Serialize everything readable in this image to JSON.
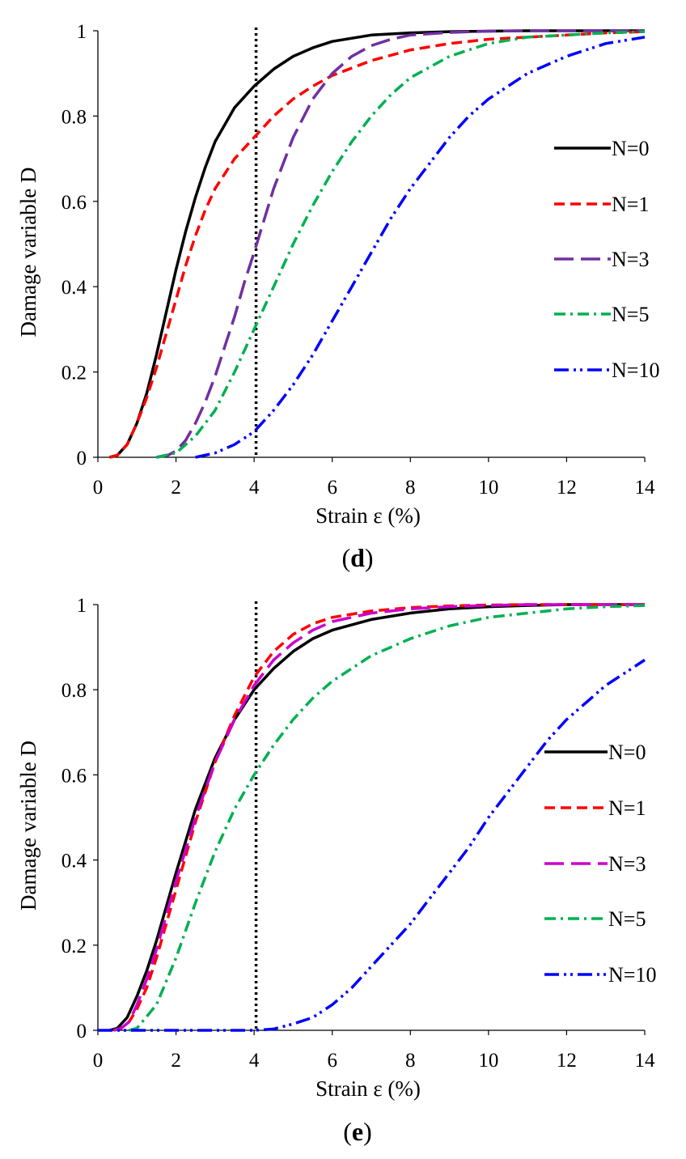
{
  "chart_data": [
    {
      "type": "line",
      "panel_label": "d",
      "xlabel": "Strain ε (%)",
      "ylabel": "Damage variable D",
      "xlim": [
        0,
        14
      ],
      "ylim": [
        0,
        1
      ],
      "x_ticks": [
        "0",
        "2",
        "4",
        "6",
        "8",
        "10",
        "12",
        "14"
      ],
      "y_ticks": [
        "0",
        "0.2",
        "0.4",
        "0.6",
        "0.8",
        "1"
      ],
      "grid": false,
      "legend_position": "right",
      "reference_line": {
        "x": 4.05,
        "style": "dotted",
        "color": "#000000"
      },
      "series": [
        {
          "name": "N=0",
          "color": "#000000",
          "dash": "solid",
          "x": [
            0.3,
            0.5,
            0.75,
            1.0,
            1.25,
            1.5,
            1.75,
            2.0,
            2.25,
            2.5,
            2.75,
            3.0,
            3.5,
            4.0,
            4.5,
            5.0,
            5.5,
            6.0,
            7.0,
            8.0,
            9.0,
            10.0,
            11.0,
            12.0,
            13.0,
            14.0
          ],
          "y": [
            0,
            0.005,
            0.03,
            0.08,
            0.15,
            0.24,
            0.34,
            0.44,
            0.53,
            0.61,
            0.68,
            0.74,
            0.82,
            0.87,
            0.91,
            0.94,
            0.96,
            0.975,
            0.99,
            0.995,
            0.998,
            0.999,
            1.0,
            1.0,
            1.0,
            1.0
          ]
        },
        {
          "name": "N=1",
          "color": "#ff0000",
          "dash": "long-dash",
          "x": [
            0.3,
            0.5,
            0.75,
            1.0,
            1.25,
            1.5,
            1.75,
            2.0,
            2.25,
            2.5,
            2.75,
            3.0,
            3.5,
            4.0,
            4.5,
            5.0,
            5.5,
            6.0,
            7.0,
            8.0,
            9.0,
            10.0,
            11.0,
            12.0,
            13.0,
            14.0
          ],
          "y": [
            0,
            0.005,
            0.03,
            0.08,
            0.14,
            0.21,
            0.29,
            0.37,
            0.45,
            0.52,
            0.58,
            0.63,
            0.7,
            0.75,
            0.8,
            0.84,
            0.87,
            0.895,
            0.93,
            0.955,
            0.97,
            0.98,
            0.985,
            0.99,
            0.995,
            0.998
          ]
        },
        {
          "name": "N=3",
          "color": "#7030a0",
          "dash": "very-long-dash",
          "x": [
            1.5,
            1.8,
            2.0,
            2.25,
            2.5,
            2.75,
            3.0,
            3.25,
            3.5,
            3.75,
            4.0,
            4.5,
            5.0,
            5.5,
            6.0,
            6.5,
            7.0,
            7.5,
            8.0,
            9.0,
            10.0,
            11.0,
            12.0,
            13.0,
            14.0
          ],
          "y": [
            0,
            0.005,
            0.015,
            0.04,
            0.08,
            0.13,
            0.19,
            0.26,
            0.33,
            0.41,
            0.48,
            0.63,
            0.75,
            0.84,
            0.9,
            0.94,
            0.965,
            0.98,
            0.99,
            0.996,
            0.999,
            1.0,
            1.0,
            1.0,
            1.0
          ]
        },
        {
          "name": "N=5",
          "color": "#00b050",
          "dash": "dash-dot",
          "x": [
            1.5,
            2.0,
            2.5,
            3.0,
            3.5,
            4.0,
            4.5,
            5.0,
            5.5,
            6.0,
            6.5,
            7.0,
            7.5,
            8.0,
            9.0,
            10.0,
            11.0,
            12.0,
            13.0,
            14.0
          ],
          "y": [
            0,
            0.01,
            0.05,
            0.11,
            0.2,
            0.3,
            0.4,
            0.5,
            0.59,
            0.67,
            0.74,
            0.8,
            0.85,
            0.89,
            0.94,
            0.97,
            0.985,
            0.99,
            0.995,
            0.998
          ]
        },
        {
          "name": "N=10",
          "color": "#0000ff",
          "dash": "dash-dot-dot",
          "x": [
            2.5,
            3.0,
            3.5,
            4.0,
            4.5,
            5.0,
            5.5,
            6.0,
            6.5,
            7.0,
            7.5,
            8.0,
            8.5,
            9.0,
            9.5,
            10.0,
            11.0,
            12.0,
            13.0,
            14.0
          ],
          "y": [
            0,
            0.01,
            0.03,
            0.06,
            0.11,
            0.17,
            0.24,
            0.32,
            0.4,
            0.48,
            0.56,
            0.63,
            0.69,
            0.75,
            0.8,
            0.84,
            0.9,
            0.94,
            0.97,
            0.985
          ]
        }
      ]
    },
    {
      "type": "line",
      "panel_label": "e",
      "xlabel": "Strain ε (%)",
      "ylabel": "Damage variable D",
      "xlim": [
        0,
        14
      ],
      "ylim": [
        0,
        1
      ],
      "x_ticks": [
        "0",
        "2",
        "4",
        "6",
        "8",
        "10",
        "12",
        "14"
      ],
      "y_ticks": [
        "0",
        "0.2",
        "0.4",
        "0.6",
        "0.8",
        "1"
      ],
      "grid": false,
      "legend_position": "right",
      "reference_line": {
        "x": 4.05,
        "style": "dotted",
        "color": "#000000"
      },
      "series": [
        {
          "name": "N=0",
          "color": "#000000",
          "dash": "solid",
          "x": [
            0.3,
            0.5,
            0.75,
            1.0,
            1.25,
            1.5,
            2.0,
            2.5,
            3.0,
            3.5,
            4.0,
            4.5,
            5.0,
            5.5,
            6.0,
            7.0,
            8.0,
            9.0,
            10.0,
            11.0,
            12.0,
            13.0,
            14.0
          ],
          "y": [
            0,
            0.005,
            0.03,
            0.08,
            0.14,
            0.21,
            0.37,
            0.52,
            0.64,
            0.73,
            0.8,
            0.85,
            0.89,
            0.92,
            0.94,
            0.965,
            0.98,
            0.99,
            0.995,
            0.998,
            1.0,
            1.0,
            1.0
          ]
        },
        {
          "name": "N=1",
          "color": "#ff0000",
          "dash": "long-dash",
          "x": [
            0.4,
            0.6,
            0.8,
            1.0,
            1.25,
            1.5,
            2.0,
            2.5,
            3.0,
            3.5,
            4.0,
            4.5,
            5.0,
            5.5,
            6.0,
            7.0,
            8.0,
            9.0,
            10.0,
            11.0,
            12.0,
            13.0,
            14.0
          ],
          "y": [
            0,
            0.005,
            0.02,
            0.05,
            0.1,
            0.17,
            0.33,
            0.49,
            0.63,
            0.74,
            0.83,
            0.89,
            0.93,
            0.955,
            0.97,
            0.985,
            0.993,
            0.997,
            0.999,
            1.0,
            1.0,
            1.0,
            1.0
          ]
        },
        {
          "name": "N=3",
          "color": "#cc00cc",
          "dash": "very-long-dash",
          "x": [
            0.4,
            0.6,
            0.8,
            1.0,
            1.25,
            1.5,
            2.0,
            2.5,
            3.0,
            3.5,
            4.0,
            4.5,
            5.0,
            5.5,
            6.0,
            7.0,
            8.0,
            9.0,
            10.0,
            11.0,
            12.0,
            13.0,
            14.0
          ],
          "y": [
            0,
            0.005,
            0.02,
            0.06,
            0.12,
            0.19,
            0.35,
            0.5,
            0.63,
            0.73,
            0.81,
            0.87,
            0.91,
            0.94,
            0.96,
            0.98,
            0.99,
            0.995,
            0.998,
            1.0,
            1.0,
            1.0,
            1.0
          ]
        },
        {
          "name": "N=5",
          "color": "#00b050",
          "dash": "dash-dot",
          "x": [
            0.8,
            1.0,
            1.5,
            2.0,
            2.5,
            3.0,
            3.5,
            4.0,
            4.5,
            5.0,
            5.5,
            6.0,
            7.0,
            8.0,
            9.0,
            10.0,
            11.0,
            12.0,
            13.0,
            14.0
          ],
          "y": [
            0,
            0.005,
            0.06,
            0.17,
            0.3,
            0.42,
            0.52,
            0.6,
            0.67,
            0.73,
            0.78,
            0.82,
            0.88,
            0.92,
            0.95,
            0.97,
            0.98,
            0.99,
            0.995,
            0.998
          ]
        },
        {
          "name": "N=10",
          "color": "#0000ff",
          "dash": "dash-dot-dot",
          "x": [
            0.0,
            2.0,
            4.0,
            4.5,
            5.0,
            5.5,
            6.0,
            6.5,
            7.0,
            7.5,
            8.0,
            8.5,
            9.0,
            9.5,
            10.0,
            10.5,
            11.0,
            11.5,
            12.0,
            12.5,
            13.0,
            13.5,
            14.0
          ],
          "y": [
            0,
            0,
            0,
            0.003,
            0.015,
            0.03,
            0.06,
            0.1,
            0.15,
            0.2,
            0.25,
            0.31,
            0.37,
            0.43,
            0.5,
            0.56,
            0.62,
            0.68,
            0.73,
            0.77,
            0.81,
            0.84,
            0.87
          ]
        }
      ]
    }
  ]
}
